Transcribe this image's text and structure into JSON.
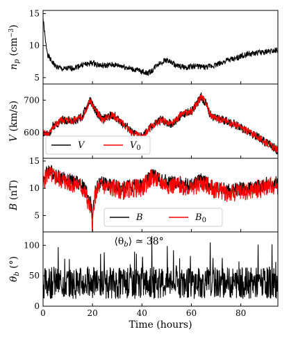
{
  "figure": {
    "xlabel": "Time (hours)"
  },
  "chart_data": [
    {
      "type": "line",
      "panel_id": "np",
      "ylabel_main": "n",
      "ylabel_sub": "p",
      "ylabel_unit": " (cm",
      "ylabel_exp": "−3",
      "ylabel_close": ")",
      "xlim": [
        0,
        95
      ],
      "ylim": [
        4,
        15.5
      ],
      "yticks": [
        5,
        10,
        15
      ],
      "xticks": [
        0,
        20,
        40,
        60,
        80
      ],
      "xticklabels_visible": false,
      "series": [
        {
          "color": "#000000",
          "x": [
            0,
            0.5,
            1,
            2,
            3,
            5,
            8,
            12,
            16,
            20,
            24,
            28,
            32,
            36,
            40,
            42,
            44,
            46,
            50,
            54,
            58,
            62,
            66,
            70,
            74,
            78,
            82,
            86,
            90,
            95
          ],
          "y": [
            14.2,
            12.5,
            10.5,
            8.5,
            7.8,
            6.8,
            6.3,
            6.5,
            7.0,
            7.3,
            6.8,
            7.0,
            6.8,
            6.3,
            6.0,
            5.7,
            6.0,
            7.0,
            7.8,
            6.8,
            6.6,
            6.8,
            6.6,
            7.0,
            7.6,
            8.0,
            8.6,
            8.8,
            9.0,
            9.4
          ],
          "noise": 0.45,
          "seed": 1
        }
      ],
      "legend": null,
      "annotation": null
    },
    {
      "type": "line",
      "panel_id": "V",
      "ylabel_main": "V",
      "ylabel_sub": "",
      "ylabel_unit": " (km/s)",
      "ylabel_exp": "",
      "ylabel_close": "",
      "xlim": [
        0,
        95
      ],
      "ylim": [
        520,
        750
      ],
      "yticks": [
        600,
        700
      ],
      "xticks": [
        0,
        20,
        40,
        60,
        80
      ],
      "xticklabels_visible": false,
      "series": [
        {
          "name": "V",
          "color": "#000000",
          "x": [
            0,
            2,
            4,
            8,
            12,
            16,
            19,
            21,
            24,
            28,
            32,
            36,
            40,
            44,
            48,
            52,
            56,
            60,
            64,
            66,
            68,
            72,
            76,
            80,
            84,
            88,
            92,
            95
          ],
          "y": [
            600,
            590,
            620,
            640,
            635,
            650,
            700,
            670,
            640,
            655,
            630,
            600,
            585,
            620,
            640,
            625,
            655,
            665,
            710,
            690,
            650,
            640,
            630,
            615,
            600,
            580,
            560,
            545
          ],
          "noise": 14,
          "seed": 2
        },
        {
          "name": "V",
          "sub": "0",
          "color": "#ff0000",
          "x": [
            0,
            2,
            4,
            8,
            12,
            16,
            19,
            21,
            24,
            28,
            32,
            36,
            40,
            44,
            48,
            52,
            56,
            60,
            64,
            66,
            68,
            72,
            76,
            80,
            84,
            88,
            92,
            95
          ],
          "y": [
            600,
            590,
            620,
            640,
            635,
            650,
            700,
            670,
            640,
            655,
            630,
            600,
            585,
            620,
            640,
            625,
            655,
            665,
            710,
            690,
            650,
            640,
            630,
            615,
            600,
            580,
            560,
            545
          ],
          "noise": 11,
          "seed": 3
        }
      ],
      "legend": {
        "placement": "bottom-left"
      },
      "annotation": null
    },
    {
      "type": "line",
      "panel_id": "B",
      "ylabel_main": "B",
      "ylabel_sub": "",
      "ylabel_unit": " (nT)",
      "ylabel_exp": "",
      "ylabel_close": "",
      "xlim": [
        0,
        95
      ],
      "ylim": [
        2,
        15.5
      ],
      "yticks": [
        5,
        10,
        15
      ],
      "xticks": [
        0,
        20,
        40,
        60,
        80
      ],
      "xticklabels_visible": false,
      "series": [
        {
          "name": "B",
          "color": "#000000",
          "x": [
            0,
            2,
            5,
            10,
            15,
            17,
            19,
            20,
            21,
            23,
            28,
            32,
            36,
            40,
            44,
            48,
            52,
            56,
            60,
            64,
            68,
            72,
            76,
            80,
            84,
            88,
            92,
            95
          ],
          "y": [
            11.5,
            13.5,
            12.5,
            11.5,
            11.0,
            10.0,
            8.0,
            5.0,
            9.5,
            11.0,
            10.5,
            10.0,
            10.5,
            10.5,
            12.5,
            11.5,
            11.0,
            11.0,
            10.5,
            11.5,
            10.5,
            10.0,
            9.5,
            10.0,
            10.0,
            10.5,
            11.0,
            11.0
          ],
          "noise": 1.3,
          "seed": 4
        },
        {
          "name": "B",
          "sub": "0",
          "color": "#ff0000",
          "x": [
            0,
            2,
            5,
            10,
            15,
            17,
            19,
            20,
            21,
            23,
            28,
            32,
            36,
            40,
            44,
            48,
            52,
            56,
            60,
            64,
            68,
            72,
            76,
            80,
            84,
            88,
            92,
            95
          ],
          "y": [
            11.0,
            12.8,
            12.0,
            11.0,
            10.5,
            9.0,
            6.5,
            3.5,
            8.5,
            10.5,
            10.0,
            9.5,
            10.0,
            10.0,
            12.0,
            11.0,
            10.5,
            10.5,
            10.0,
            11.0,
            10.0,
            9.5,
            9.0,
            9.5,
            9.5,
            10.0,
            10.5,
            10.5
          ],
          "noise": 1.7,
          "seed": 5
        }
      ],
      "legend": {
        "placement": "bottom-center"
      },
      "annotation": null
    },
    {
      "type": "line",
      "panel_id": "theta",
      "ylabel_main": "θ",
      "ylabel_sub": "b",
      "ylabel_unit": " (°)",
      "ylabel_exp": "",
      "ylabel_close": "",
      "xlim": [
        0,
        95
      ],
      "ylim": [
        0,
        122
      ],
      "yticks": [
        0,
        50,
        100
      ],
      "xticks": [
        0,
        20,
        40,
        60,
        80
      ],
      "xticklabels_visible": true,
      "series": [
        {
          "color": "#000000",
          "x": [
            0,
            95
          ],
          "y": [
            38,
            38
          ],
          "noise": 26,
          "seed": 6
        }
      ],
      "legend": null,
      "annotation": {
        "text": "⟨θ",
        "sub": "b",
        "rest": "⟩ ≃ 38°"
      }
    }
  ]
}
